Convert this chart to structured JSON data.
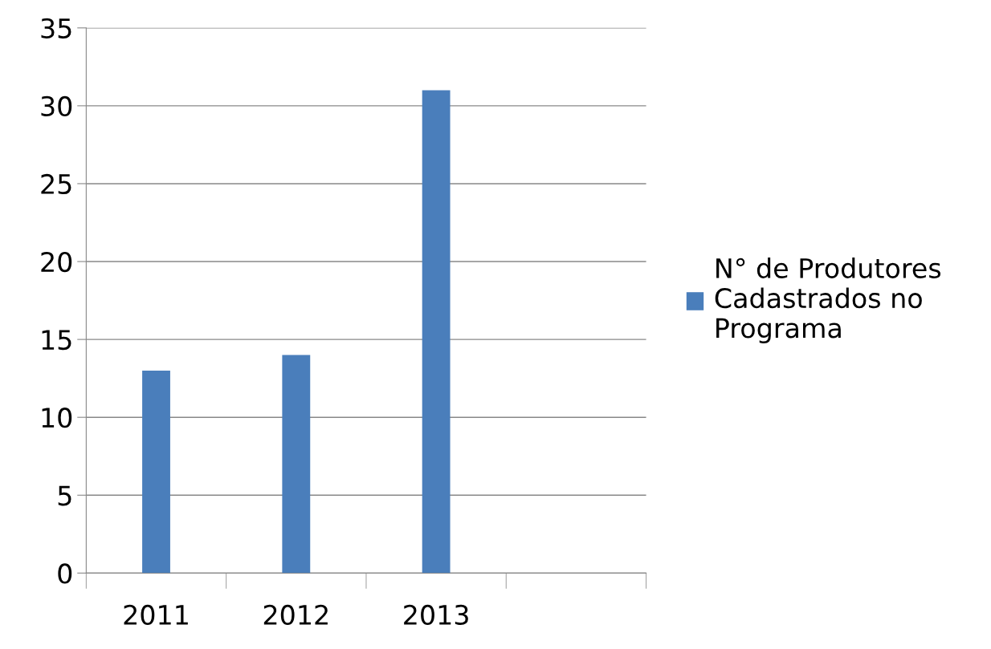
{
  "chart_data": {
    "type": "bar",
    "categories": [
      "2011",
      "2012",
      "2013",
      null
    ],
    "series": [
      {
        "name": "N° de Produtores\nCadastrados no\nPrograma",
        "color": "#4a7ebb",
        "values": [
          13,
          14,
          31,
          null
        ]
      }
    ],
    "ylim": [
      0,
      35
    ],
    "yticks": [
      0,
      5,
      10,
      15,
      20,
      25,
      30,
      35
    ],
    "grid": "y",
    "legend": "right"
  }
}
